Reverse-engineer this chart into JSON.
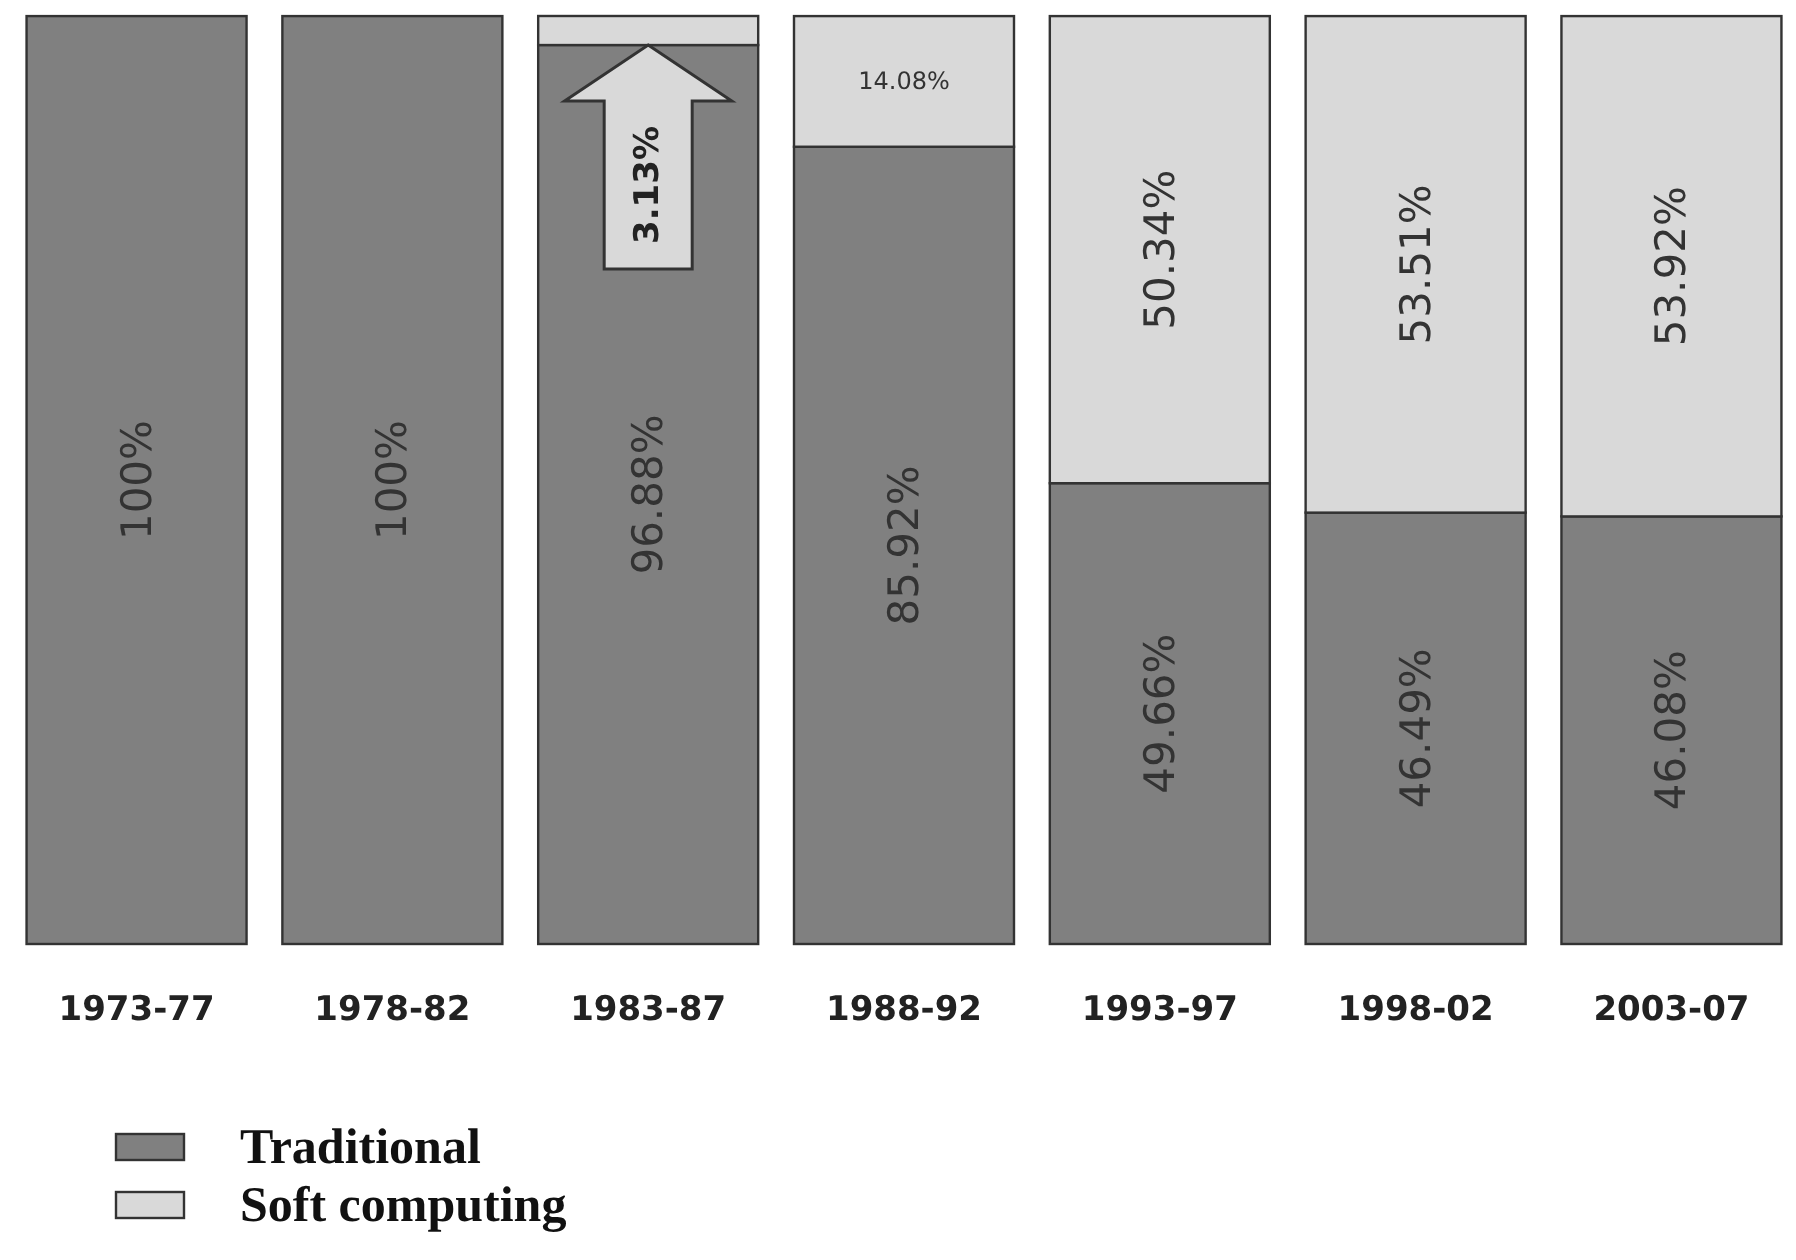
{
  "chart_data": {
    "type": "bar",
    "stacked": true,
    "legend": "bottom left",
    "categories": [
      "1973-77",
      "1978-82",
      "1983-87",
      "1988-92",
      "1993-97",
      "1998-02",
      "2003-07"
    ],
    "series": [
      {
        "name": "Traditional",
        "color": "#808080",
        "values": [
          100,
          100,
          96.88,
          85.92,
          49.66,
          46.49,
          46.08
        ],
        "value_labels": [
          "100%",
          "100%",
          "96.88%",
          "85.92%",
          "49.66%",
          "46.49%",
          "46.08%"
        ]
      },
      {
        "name": "Soft computing",
        "color": "#d9d9d9",
        "values": [
          0,
          0,
          3.13,
          14.08,
          50.34,
          53.51,
          53.92
        ],
        "value_labels": [
          null,
          null,
          "3.13%",
          "14.08%",
          "50.34%",
          "53.51%",
          "53.92%"
        ]
      }
    ]
  }
}
